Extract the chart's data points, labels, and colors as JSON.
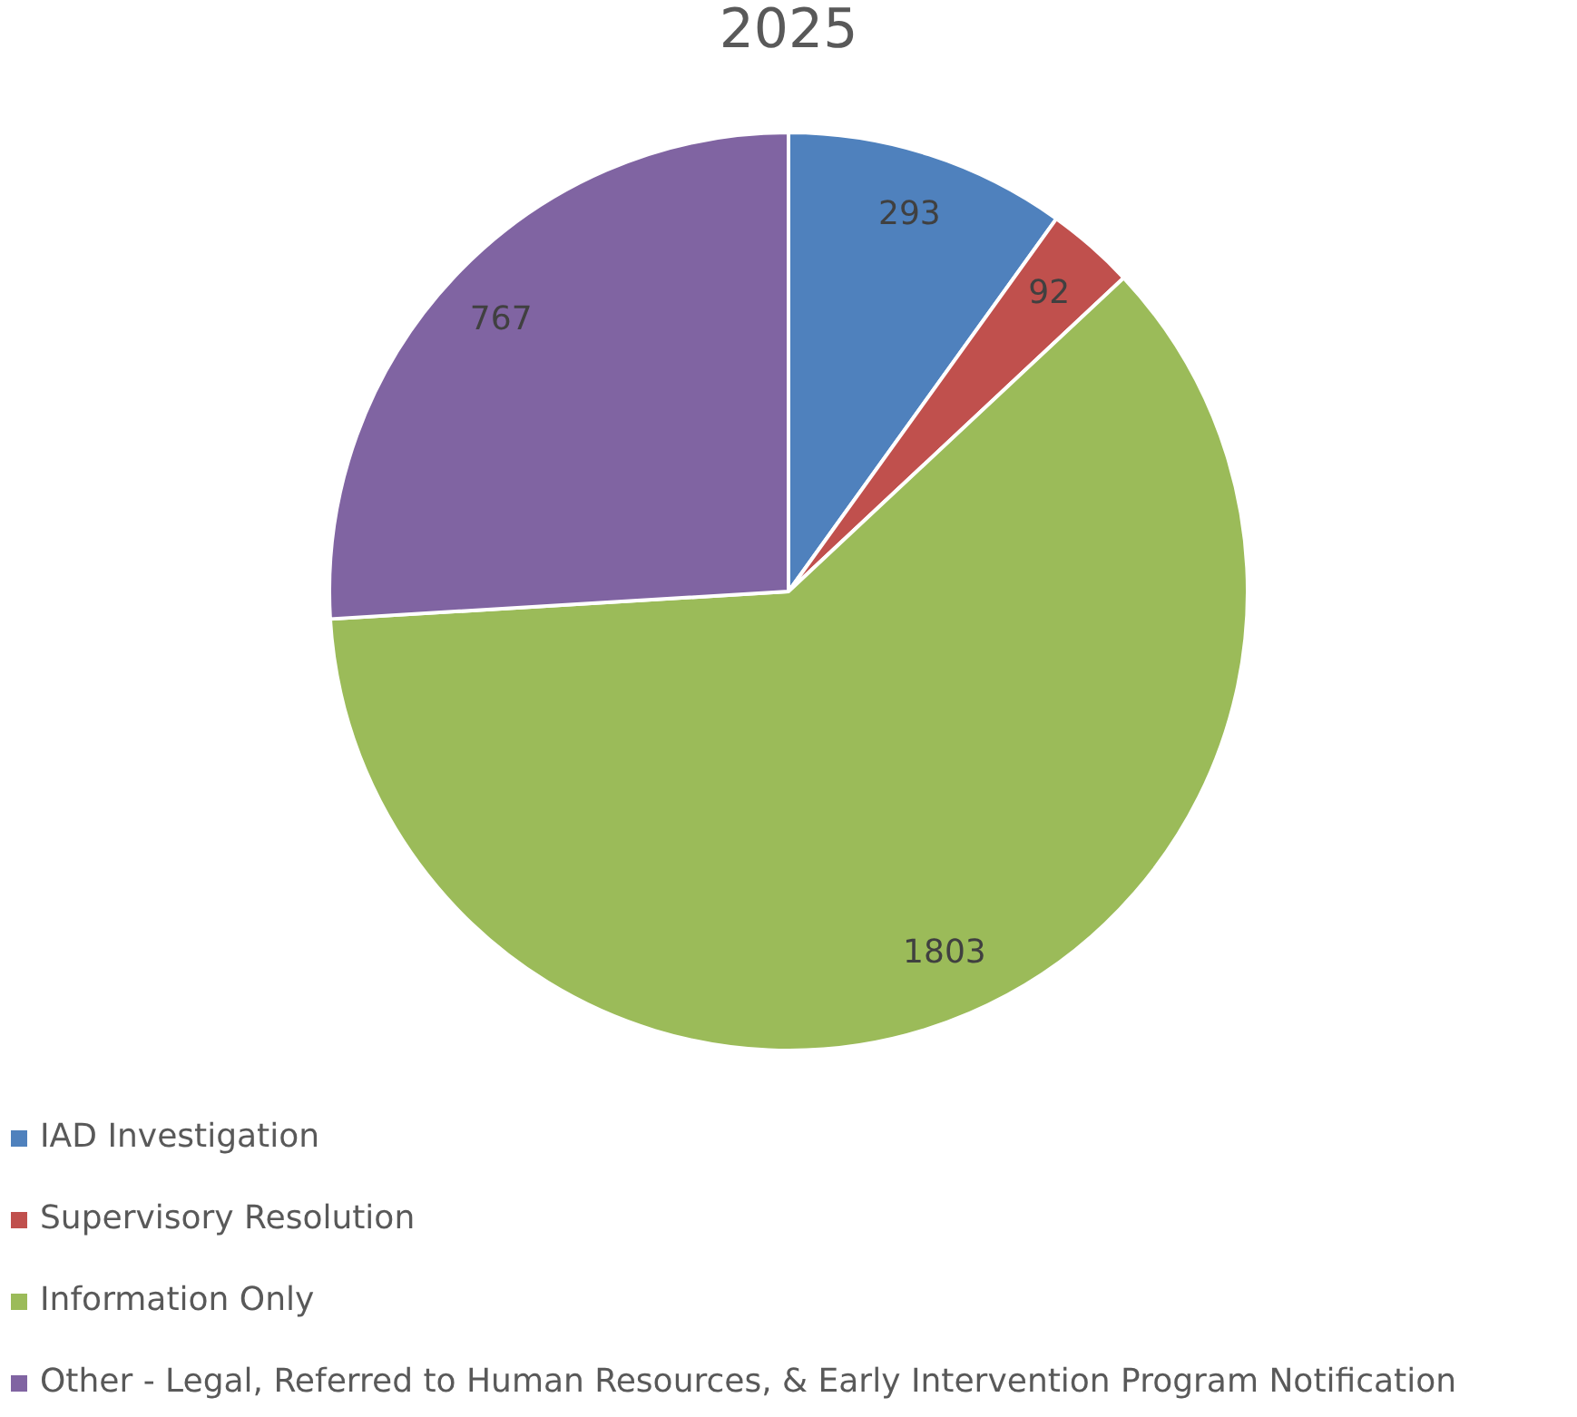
{
  "chart_data": {
    "type": "pie",
    "title": "2025",
    "categories": [
      "IAD Investigation",
      "Supervisory Resolution",
      "Information Only",
      "Other - Legal, Referred to Human Resources, & Early Intervention Program Notification"
    ],
    "values": [
      293,
      92,
      1803,
      767
    ],
    "colors": [
      "#4f81bd",
      "#c0504d",
      "#9bbb59",
      "#8064a2"
    ],
    "data_labels": true,
    "legend": "bottom left"
  }
}
